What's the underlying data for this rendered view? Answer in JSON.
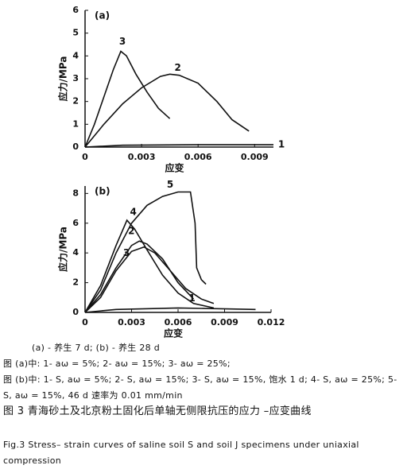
{
  "chart_data": [
    {
      "type": "line",
      "label": "(a)",
      "x_label": "应变",
      "y_label": "应力/MPa",
      "xlim": [
        0,
        0.01
      ],
      "xticks": [
        0,
        0.003,
        0.006,
        0.009
      ],
      "ylim": [
        0,
        6
      ],
      "yticks": [
        0,
        1,
        2,
        3,
        4,
        5,
        6
      ],
      "series": [
        {
          "name": "1",
          "color": "#111111",
          "x": [
            0,
            0.002,
            0.006,
            0.01
          ],
          "values": [
            0,
            0.08,
            0.1,
            0.1
          ]
        },
        {
          "name": "2",
          "color": "#111111",
          "x": [
            0,
            0.001,
            0.002,
            0.003,
            0.004,
            0.0045,
            0.005,
            0.006,
            0.007,
            0.0078,
            0.0087
          ],
          "values": [
            0,
            1.0,
            1.9,
            2.6,
            3.1,
            3.2,
            3.15,
            2.8,
            2.0,
            1.2,
            0.7
          ]
        },
        {
          "name": "3",
          "color": "#111111",
          "x": [
            0,
            0.0005,
            0.001,
            0.0015,
            0.0019,
            0.0022,
            0.0027,
            0.0033,
            0.0039,
            0.0045
          ],
          "values": [
            0,
            1.0,
            2.2,
            3.4,
            4.2,
            4.0,
            3.2,
            2.4,
            1.7,
            1.25
          ]
        }
      ]
    },
    {
      "type": "line",
      "label": "(b)",
      "x_label": "应变",
      "y_label": "应力/MPa",
      "xlim": [
        0,
        0.012
      ],
      "xticks": [
        0,
        0.003,
        0.006,
        0.009,
        0.012
      ],
      "ylim": [
        0,
        8.5
      ],
      "yticks": [
        0,
        2,
        4,
        6,
        8
      ],
      "series": [
        {
          "name": "1",
          "color": "#111111",
          "x": [
            0,
            0.002,
            0.006,
            0.011
          ],
          "values": [
            0,
            0.2,
            0.3,
            0.2
          ]
        },
        {
          "name": "2",
          "color": "#111111",
          "x": [
            0,
            0.001,
            0.002,
            0.003,
            0.0035,
            0.004,
            0.005,
            0.006,
            0.007
          ],
          "values": [
            0,
            1.2,
            3.0,
            4.5,
            4.8,
            4.6,
            3.6,
            2.0,
            0.9
          ]
        },
        {
          "name": "3",
          "color": "#111111",
          "x": [
            0,
            0.001,
            0.002,
            0.003,
            0.0038,
            0.0045,
            0.0055,
            0.0065,
            0.0075,
            0.0083
          ],
          "values": [
            0,
            1.0,
            2.8,
            4.1,
            4.4,
            4.0,
            2.8,
            1.6,
            0.9,
            0.6
          ]
        },
        {
          "name": "4",
          "color": "#111111",
          "x": [
            0,
            0.001,
            0.002,
            0.0027,
            0.0032,
            0.004,
            0.005,
            0.006,
            0.007,
            0.0083
          ],
          "values": [
            0,
            1.8,
            4.5,
            6.2,
            5.6,
            4.2,
            2.5,
            1.3,
            0.6,
            0.3
          ]
        },
        {
          "name": "5",
          "color": "#111111",
          "x": [
            0,
            0.001,
            0.002,
            0.003,
            0.004,
            0.005,
            0.006,
            0.0068,
            0.0071,
            0.0072,
            0.0075,
            0.0078
          ],
          "values": [
            0,
            1.5,
            4.0,
            6.0,
            7.2,
            7.8,
            8.1,
            8.1,
            6.0,
            3.0,
            2.2,
            1.9
          ]
        }
      ]
    }
  ],
  "caption": {
    "lines": [
      "(a) - 养生 7 d; (b) - 养生 28 d",
      "图 (a)中: 1- aω = 5%; 2- aω = 15%; 3- aω = 25%;",
      "图 (b)中: 1- S, aω = 5%; 2- S, aω = 15%; 3- S, aω = 15%, 饱水 1 d; 4- S, aω = 25%; 5- S, aω = 15%, 46 d 速率为 0.01 mm/min",
      "图 3 青海砂土及北京粉土固化后单轴无侧限抗压的应力 –应变曲线",
      "Fig.3 Stress– strain curves of saline soil S and soil J specimens under uniaxial compression"
    ]
  }
}
